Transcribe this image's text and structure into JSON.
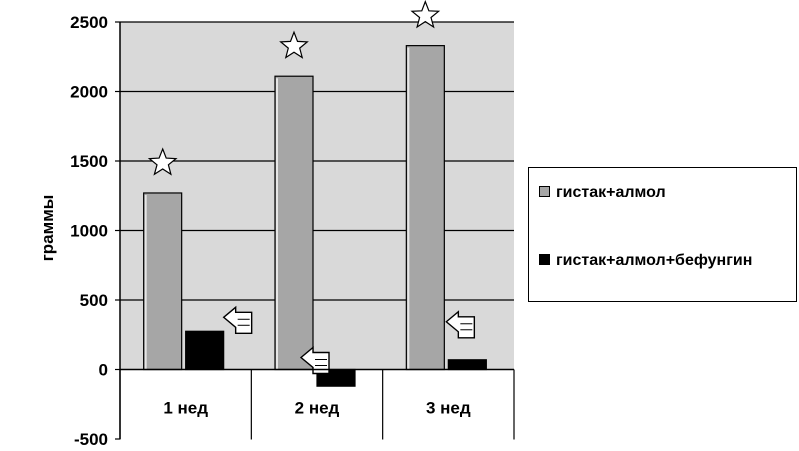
{
  "chart_data": {
    "type": "bar",
    "categories": [
      "1 нед",
      "2 нед",
      "3 нед"
    ],
    "series": [
      {
        "name": "гистак+алмол",
        "values": [
          1270,
          2110,
          2330
        ],
        "color": "#a6a6a6",
        "marker": "star-icon"
      },
      {
        "name": "гистак+алмол+бефунгин",
        "values": [
          275,
          -120,
          70
        ],
        "color": "#000000",
        "marker": "pointer-hand-icon"
      }
    ],
    "ylabel": "граммы",
    "ylim": [
      -500,
      2500
    ],
    "yticks": [
      "2500",
      "2000",
      "1500",
      "1000",
      "500",
      "0",
      "-500"
    ],
    "grid": true,
    "plot_background": "#d9d9d9",
    "legend_position": "right",
    "legend": [
      "гистак+алмол",
      "гистак+алмол+бефунгин"
    ]
  }
}
